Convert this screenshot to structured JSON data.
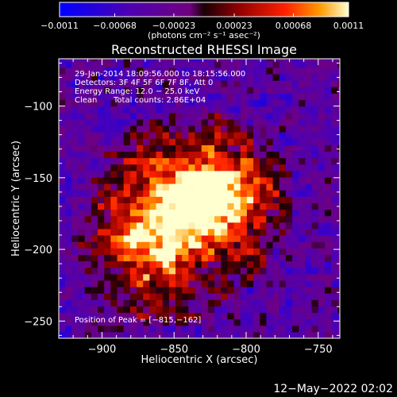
{
  "chart_data": {
    "type": "heatmap",
    "title": "Reconstructed RHESSI Image",
    "xlabel": "Heliocentric X (arcsec)",
    "ylabel": "Heliocentric Y (arcsec)",
    "xlim": [
      -930,
      -735
    ],
    "ylim": [
      -262,
      -67
    ],
    "xticks": [
      -900,
      -850,
      -800,
      -750
    ],
    "yticks": [
      -100,
      -150,
      -200,
      -250
    ],
    "xtick_labels": [
      "−900",
      "−850",
      "−800",
      "−750"
    ],
    "ytick_labels": [
      "−100",
      "−150",
      "−200",
      "−250"
    ],
    "colorbar": {
      "range": [
        -0.0011,
        0.0011
      ],
      "tick_labels": [
        "−0.0011",
        "−0.00068",
        "−0.00023",
        "0.00023",
        "0.00068",
        "0.0011"
      ],
      "tick_values": [
        -0.0011,
        -0.00068,
        -0.00023,
        0.00023,
        0.00068,
        0.0011
      ],
      "unit_label": "(photons cm⁻² s⁻¹ asec⁻²)"
    },
    "annotations": {
      "time_range": "29-Jan-2014 18:09:56.000 to 18:15:56.000",
      "detectors": "Detectors: 3F 4F 5F 6F 7F 8F, Att 0",
      "energy": "Energy Range: 12.0 − 25.0 keV",
      "method": "Clean",
      "total_counts": "Total counts: 2.86E+04",
      "peak": "Position of Peak = [−815,−162]"
    },
    "sources": [
      {
        "x": -815,
        "y": -162,
        "peak": 0.0011
      },
      {
        "x": -870,
        "y": -200,
        "peak": 0.00075
      },
      {
        "x": -848,
        "y": -165,
        "peak": 0.0008
      }
    ]
  },
  "footer": {
    "date": "12−May−2022 02:02"
  }
}
